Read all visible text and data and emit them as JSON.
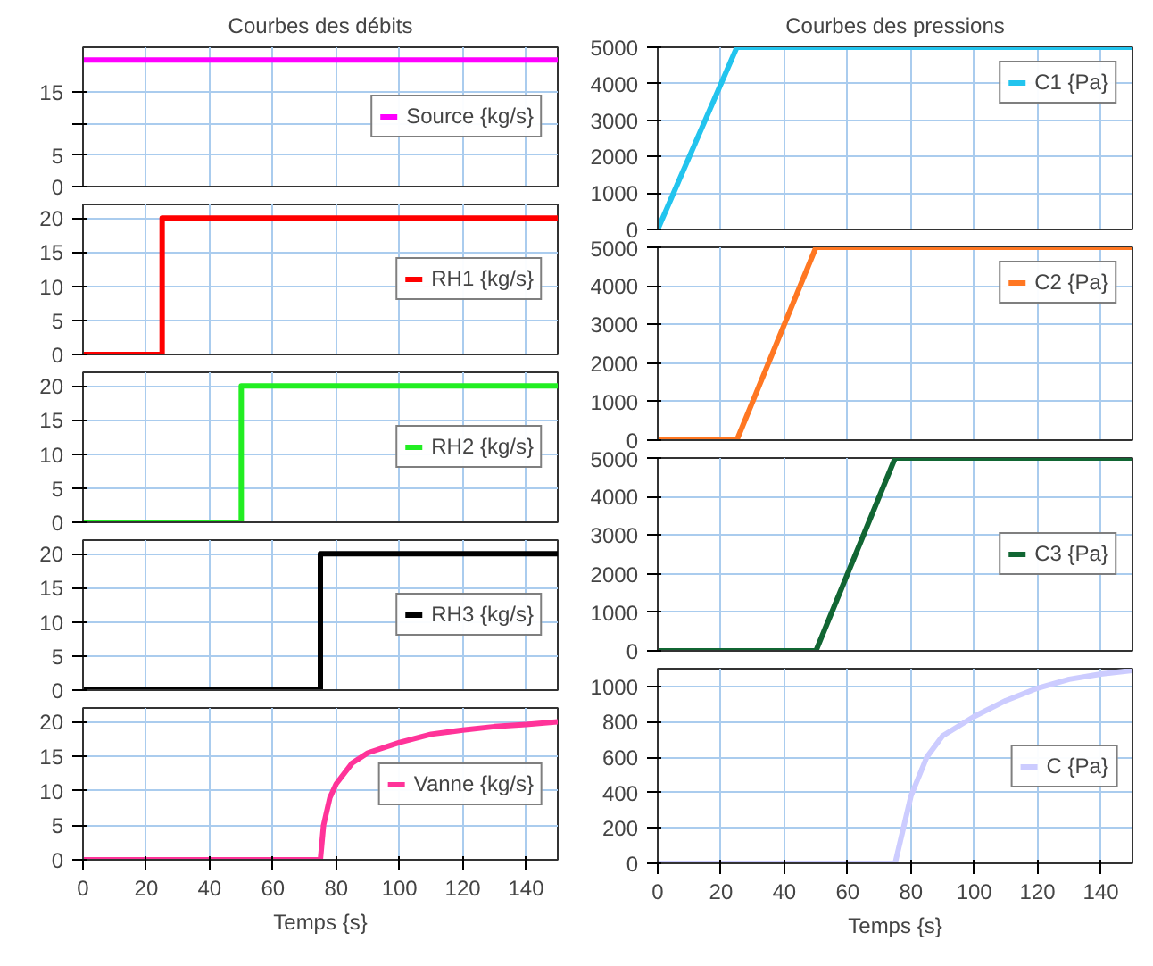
{
  "chart_data": [
    {
      "type": "line",
      "title": "Courbes des débits",
      "x": [
        0,
        150
      ],
      "series": [
        {
          "name": "Source {kg/s}",
          "color": "#ff00ff",
          "values": [
            20,
            20
          ]
        }
      ],
      "xlim": [
        0,
        150
      ],
      "ylim": [
        0,
        22
      ],
      "xticks": [
        0,
        20,
        40,
        60,
        80,
        100,
        120,
        140
      ],
      "yticks": [
        0,
        5,
        {
          "value": 10,
          "label": null
        },
        15
      ],
      "grid": true,
      "legend": "right",
      "tick_labels": "y"
    },
    {
      "type": "line",
      "x": [
        0,
        25,
        25,
        150
      ],
      "series": [
        {
          "name": "RH1 {kg/s}",
          "color": "#ff0000",
          "values": [
            0,
            0,
            20,
            20
          ]
        }
      ],
      "xlim": [
        0,
        150
      ],
      "ylim": [
        0,
        22
      ],
      "xticks": [
        0,
        20,
        40,
        60,
        80,
        100,
        120,
        140
      ],
      "yticks": [
        0,
        5,
        10,
        15,
        20
      ],
      "grid": true,
      "legend": "right",
      "tick_labels": "y"
    },
    {
      "type": "line",
      "x": [
        0,
        50,
        50,
        150
      ],
      "series": [
        {
          "name": "RH2 {kg/s}",
          "color": "#22ee22",
          "values": [
            0,
            0,
            20,
            20
          ]
        }
      ],
      "xlim": [
        0,
        150
      ],
      "ylim": [
        0,
        22
      ],
      "xticks": [
        0,
        20,
        40,
        60,
        80,
        100,
        120,
        140
      ],
      "yticks": [
        0,
        5,
        10,
        15,
        20
      ],
      "grid": true,
      "legend": "right",
      "tick_labels": "y"
    },
    {
      "type": "line",
      "x": [
        0,
        75,
        75,
        150
      ],
      "series": [
        {
          "name": "RH3 {kg/s}",
          "color": "#000000",
          "values": [
            0,
            0,
            20,
            20
          ]
        }
      ],
      "xlim": [
        0,
        150
      ],
      "ylim": [
        0,
        22
      ],
      "xticks": [
        0,
        20,
        40,
        60,
        80,
        100,
        120,
        140
      ],
      "yticks": [
        0,
        5,
        10,
        15,
        20
      ],
      "grid": true,
      "legend": "right",
      "tick_labels": "y"
    },
    {
      "type": "line",
      "xlabel": "Temps {s}",
      "x": [
        0,
        75,
        76,
        78,
        80,
        85,
        90,
        100,
        110,
        120,
        130,
        140,
        150
      ],
      "series": [
        {
          "name": "Vanne {kg/s}",
          "color": "#ff3399",
          "values": [
            0,
            0,
            5,
            9,
            11,
            14,
            15.5,
            17,
            18.2,
            18.8,
            19.3,
            19.6,
            20
          ]
        }
      ],
      "xlim": [
        0,
        150
      ],
      "ylim": [
        0,
        22
      ],
      "xticks": [
        0,
        20,
        40,
        60,
        80,
        100,
        120,
        140
      ],
      "yticks": [
        0,
        5,
        10,
        15,
        20
      ],
      "grid": true,
      "legend": "right"
    },
    {
      "type": "line",
      "title": "Courbes des pressions",
      "x": [
        0,
        25,
        150
      ],
      "series": [
        {
          "name": "C1 {Pa}",
          "color": "#22c4ee",
          "values": [
            0,
            5000,
            5000
          ]
        }
      ],
      "xlim": [
        0,
        150
      ],
      "ylim": [
        0,
        5000
      ],
      "xticks": [
        0,
        20,
        40,
        60,
        80,
        100,
        120,
        140
      ],
      "yticks": [
        0,
        1000,
        2000,
        3000,
        4000,
        5000
      ],
      "grid": true,
      "legend": "top right",
      "tick_labels": "y"
    },
    {
      "type": "line",
      "x": [
        0,
        25,
        50,
        150
      ],
      "series": [
        {
          "name": "C2 {Pa}",
          "color": "#ff7722",
          "values": [
            0,
            0,
            5000,
            5000
          ]
        }
      ],
      "xlim": [
        0,
        150
      ],
      "ylim": [
        0,
        5000
      ],
      "xticks": [
        0,
        20,
        40,
        60,
        80,
        100,
        120,
        140
      ],
      "yticks": [
        0,
        1000,
        2000,
        3000,
        4000,
        5000
      ],
      "grid": true,
      "legend": "top right",
      "tick_labels": "y"
    },
    {
      "type": "line",
      "x": [
        0,
        50,
        75,
        150
      ],
      "series": [
        {
          "name": "C3 {Pa}",
          "color": "#116633",
          "values": [
            0,
            0,
            5000,
            5000
          ]
        }
      ],
      "xlim": [
        0,
        150
      ],
      "ylim": [
        0,
        5000
      ],
      "xticks": [
        0,
        20,
        40,
        60,
        80,
        100,
        120,
        140
      ],
      "yticks": [
        0,
        1000,
        2000,
        3000,
        4000,
        5000
      ],
      "grid": true,
      "legend": "right",
      "tick_labels": "y"
    },
    {
      "type": "line",
      "xlabel": "Temps {s}",
      "x": [
        0,
        75,
        80,
        85,
        90,
        100,
        110,
        120,
        130,
        140,
        150
      ],
      "series": [
        {
          "name": "C {Pa}",
          "color": "#ccccff",
          "values": [
            0,
            0,
            380,
            600,
            720,
            830,
            920,
            990,
            1040,
            1070,
            1090
          ]
        }
      ],
      "xlim": [
        0,
        150
      ],
      "ylim": [
        0,
        1100
      ],
      "xticks": [
        0,
        20,
        40,
        60,
        80,
        100,
        120,
        140
      ],
      "yticks": [
        0,
        200,
        400,
        600,
        800,
        1000
      ],
      "grid": true,
      "legend": "right"
    }
  ]
}
